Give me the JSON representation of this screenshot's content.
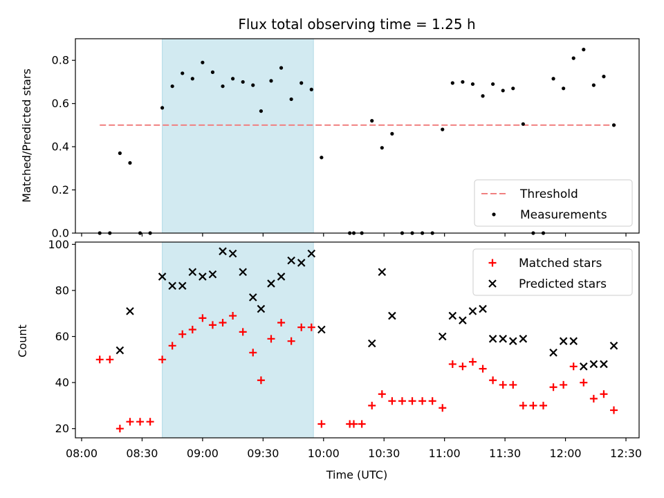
{
  "chart_data": [
    {
      "type": "scatter",
      "title": "Flux total observing time = 1.25 h",
      "ylabel": "Matched/Predicted stars",
      "xlabel": "",
      "x_unit": "UTC",
      "xlim": [
        "08:00",
        "12:30"
      ],
      "ylim": [
        0,
        0.9
      ],
      "yticks": [
        0.0,
        0.2,
        0.4,
        0.6,
        0.8
      ],
      "ytick_labels": [
        "0.0",
        "0.2",
        "0.4",
        "0.6",
        "0.8"
      ],
      "grid": false,
      "legend": "bottom-right",
      "highlight_span": {
        "from": "08:40",
        "to": "09:55",
        "color": "#add8e6"
      },
      "threshold": {
        "name": "Threshold",
        "value": 0.5,
        "from": "08:09",
        "to": "12:25",
        "color": "#f08080"
      },
      "series": [
        {
          "name": "Measurements",
          "color": "#000000",
          "marker": "dot",
          "points": [
            [
              "08:09",
              0.0
            ],
            [
              "08:14",
              0.0
            ],
            [
              "08:19",
              0.37
            ],
            [
              "08:24",
              0.325
            ],
            [
              "08:29",
              0.0
            ],
            [
              "08:34",
              0.0
            ],
            [
              "08:40",
              0.58
            ],
            [
              "08:45",
              0.68
            ],
            [
              "08:50",
              0.74
            ],
            [
              "08:55",
              0.715
            ],
            [
              "09:00",
              0.79
            ],
            [
              "09:05",
              0.745
            ],
            [
              "09:10",
              0.68
            ],
            [
              "09:15",
              0.715
            ],
            [
              "09:20",
              0.7
            ],
            [
              "09:25",
              0.685
            ],
            [
              "09:29",
              0.565
            ],
            [
              "09:34",
              0.705
            ],
            [
              "09:39",
              0.765
            ],
            [
              "09:44",
              0.62
            ],
            [
              "09:49",
              0.695
            ],
            [
              "09:54",
              0.665
            ],
            [
              "09:59",
              0.35
            ],
            [
              "10:13",
              0.0
            ],
            [
              "10:15",
              0.0
            ],
            [
              "10:19",
              0.0
            ],
            [
              "10:24",
              0.52
            ],
            [
              "10:29",
              0.395
            ],
            [
              "10:34",
              0.46
            ],
            [
              "10:39",
              0.0
            ],
            [
              "10:44",
              0.0
            ],
            [
              "10:49",
              0.0
            ],
            [
              "10:54",
              0.0
            ],
            [
              "10:59",
              0.48
            ],
            [
              "11:04",
              0.695
            ],
            [
              "11:09",
              0.7
            ],
            [
              "11:14",
              0.69
            ],
            [
              "11:19",
              0.635
            ],
            [
              "11:24",
              0.69
            ],
            [
              "11:29",
              0.66
            ],
            [
              "11:34",
              0.67
            ],
            [
              "11:39",
              0.505
            ],
            [
              "11:44",
              0.0
            ],
            [
              "11:49",
              0.0
            ],
            [
              "11:54",
              0.715
            ],
            [
              "11:59",
              0.67
            ],
            [
              "12:04",
              0.81
            ],
            [
              "12:09",
              0.85
            ],
            [
              "12:14",
              0.685
            ],
            [
              "12:19",
              0.725
            ],
            [
              "12:24",
              0.5
            ]
          ]
        }
      ]
    },
    {
      "type": "scatter",
      "title": "",
      "ylabel": "Count",
      "xlabel": "Time (UTC)",
      "xlim": [
        "08:00",
        "12:30"
      ],
      "xticks": [
        "08:00",
        "08:30",
        "09:00",
        "09:30",
        "10:00",
        "10:30",
        "11:00",
        "11:30",
        "12:00",
        "12:30"
      ],
      "ylim": [
        16,
        101
      ],
      "yticks": [
        20,
        40,
        60,
        80,
        100
      ],
      "grid": false,
      "legend": "top-right",
      "highlight_span": {
        "from": "08:40",
        "to": "09:55",
        "color": "#add8e6"
      },
      "series": [
        {
          "name": "Matched stars",
          "color": "#ff0000",
          "marker": "plus",
          "points": [
            [
              "08:09",
              50
            ],
            [
              "08:14",
              50
            ],
            [
              "08:19",
              20
            ],
            [
              "08:24",
              23
            ],
            [
              "08:29",
              23
            ],
            [
              "08:34",
              23
            ],
            [
              "08:40",
              50
            ],
            [
              "08:45",
              56
            ],
            [
              "08:50",
              61
            ],
            [
              "08:55",
              63
            ],
            [
              "09:00",
              68
            ],
            [
              "09:05",
              65
            ],
            [
              "09:10",
              66
            ],
            [
              "09:15",
              69
            ],
            [
              "09:20",
              62
            ],
            [
              "09:25",
              53
            ],
            [
              "09:29",
              41
            ],
            [
              "09:34",
              59
            ],
            [
              "09:39",
              66
            ],
            [
              "09:44",
              58
            ],
            [
              "09:49",
              64
            ],
            [
              "09:54",
              64
            ],
            [
              "09:59",
              22
            ],
            [
              "10:13",
              22
            ],
            [
              "10:15",
              22
            ],
            [
              "10:19",
              22
            ],
            [
              "10:24",
              30
            ],
            [
              "10:29",
              35
            ],
            [
              "10:34",
              32
            ],
            [
              "10:39",
              32
            ],
            [
              "10:44",
              32
            ],
            [
              "10:49",
              32
            ],
            [
              "10:54",
              32
            ],
            [
              "10:59",
              29
            ],
            [
              "11:04",
              48
            ],
            [
              "11:09",
              47
            ],
            [
              "11:14",
              49
            ],
            [
              "11:19",
              46
            ],
            [
              "11:24",
              41
            ],
            [
              "11:29",
              39
            ],
            [
              "11:34",
              39
            ],
            [
              "11:39",
              30
            ],
            [
              "11:44",
              30
            ],
            [
              "11:49",
              30
            ],
            [
              "11:54",
              38
            ],
            [
              "11:59",
              39
            ],
            [
              "12:04",
              47
            ],
            [
              "12:09",
              40
            ],
            [
              "12:14",
              33
            ],
            [
              "12:19",
              35
            ],
            [
              "12:24",
              28
            ]
          ]
        },
        {
          "name": "Predicted stars",
          "color": "#000000",
          "marker": "x",
          "points": [
            [
              "08:19",
              54
            ],
            [
              "08:24",
              71
            ],
            [
              "08:40",
              86
            ],
            [
              "08:45",
              82
            ],
            [
              "08:50",
              82
            ],
            [
              "08:55",
              88
            ],
            [
              "09:00",
              86
            ],
            [
              "09:05",
              87
            ],
            [
              "09:10",
              97
            ],
            [
              "09:15",
              96
            ],
            [
              "09:20",
              88
            ],
            [
              "09:25",
              77
            ],
            [
              "09:29",
              72
            ],
            [
              "09:34",
              83
            ],
            [
              "09:39",
              86
            ],
            [
              "09:44",
              93
            ],
            [
              "09:49",
              92
            ],
            [
              "09:54",
              96
            ],
            [
              "09:59",
              63
            ],
            [
              "10:24",
              57
            ],
            [
              "10:29",
              88
            ],
            [
              "10:34",
              69
            ],
            [
              "10:59",
              60
            ],
            [
              "11:04",
              69
            ],
            [
              "11:09",
              67
            ],
            [
              "11:14",
              71
            ],
            [
              "11:19",
              72
            ],
            [
              "11:24",
              59
            ],
            [
              "11:29",
              59
            ],
            [
              "11:34",
              58
            ],
            [
              "11:39",
              59
            ],
            [
              "11:54",
              53
            ],
            [
              "11:59",
              58
            ],
            [
              "12:04",
              58
            ],
            [
              "12:09",
              47
            ],
            [
              "12:14",
              48
            ],
            [
              "12:19",
              48
            ],
            [
              "12:24",
              56
            ]
          ]
        }
      ]
    }
  ]
}
